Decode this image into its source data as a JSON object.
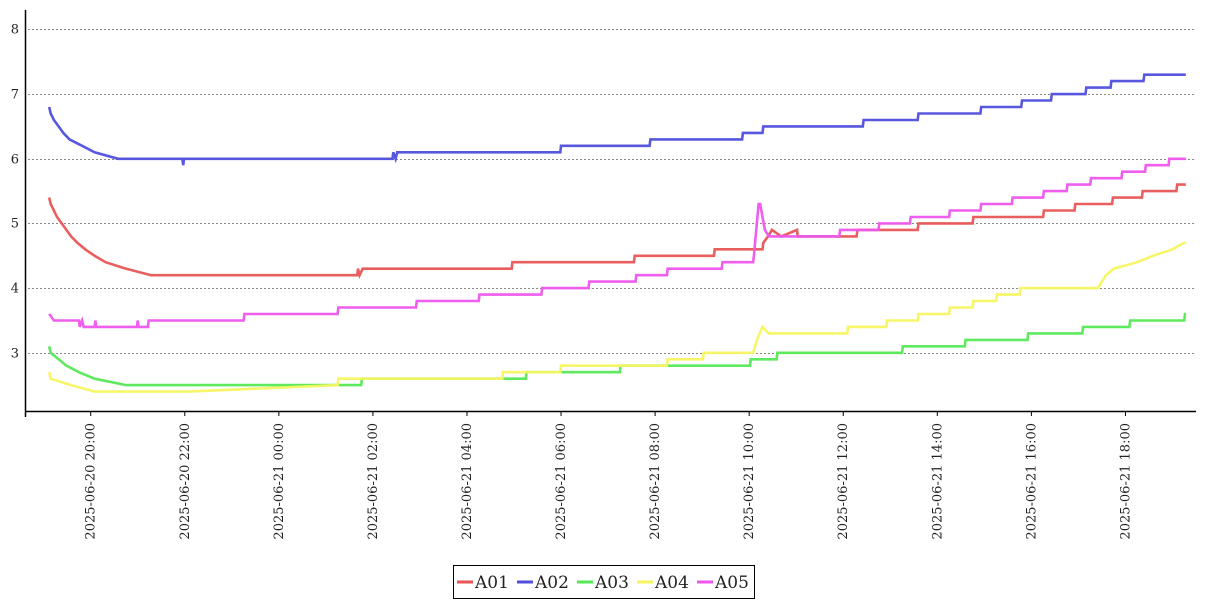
{
  "chart_data": {
    "type": "line",
    "title": "",
    "xlabel": "",
    "ylabel": "",
    "xlim": [
      "2025-06-20 18:40",
      "2025-06-21 19:30"
    ],
    "ylim": [
      2.1,
      8.3
    ],
    "yticks": [
      3,
      4,
      5,
      6,
      7,
      8
    ],
    "xticks": [
      "2025-06-20 20:00",
      "2025-06-20 22:00",
      "2025-06-21 00:00",
      "2025-06-21 02:00",
      "2025-06-21 04:00",
      "2025-06-21 06:00",
      "2025-06-21 08:00",
      "2025-06-21 10:00",
      "2025-06-21 12:00",
      "2025-06-21 14:00",
      "2025-06-21 16:00",
      "2025-06-21 18:00"
    ],
    "grid": "horizontal-dotted",
    "legend": "bottom-center",
    "series": [
      {
        "name": "A01",
        "color": "#e85555",
        "points": [
          [
            "2025-06-20 19:07",
            5.4
          ],
          [
            "2025-06-20 19:09",
            5.3
          ],
          [
            "2025-06-20 19:13",
            5.2
          ],
          [
            "2025-06-20 19:17",
            5.1
          ],
          [
            "2025-06-20 19:23",
            5.0
          ],
          [
            "2025-06-20 19:29",
            4.9
          ],
          [
            "2025-06-20 19:35",
            4.8
          ],
          [
            "2025-06-20 19:43",
            4.7
          ],
          [
            "2025-06-20 19:53",
            4.6
          ],
          [
            "2025-06-20 20:05",
            4.5
          ],
          [
            "2025-06-20 20:19",
            4.4
          ],
          [
            "2025-06-20 20:45",
            4.3
          ],
          [
            "2025-06-20 21:17",
            4.2
          ],
          [
            "2025-06-21 01:40",
            4.2
          ],
          [
            "2025-06-21 01:41",
            4.3
          ],
          [
            "2025-06-21 01:43",
            4.2
          ],
          [
            "2025-06-21 01:47",
            4.3
          ],
          [
            "2025-06-21 04:57",
            4.3
          ],
          [
            "2025-06-21 04:58",
            4.4
          ],
          [
            "2025-06-21 07:33",
            4.4
          ],
          [
            "2025-06-21 07:34",
            4.5
          ],
          [
            "2025-06-21 09:15",
            4.5
          ],
          [
            "2025-06-21 09:16",
            4.6
          ],
          [
            "2025-06-21 10:17",
            4.6
          ],
          [
            "2025-06-21 10:18",
            4.7
          ],
          [
            "2025-06-21 10:24",
            4.8
          ],
          [
            "2025-06-21 10:29",
            4.9
          ],
          [
            "2025-06-21 10:41",
            4.8
          ],
          [
            "2025-06-21 11:01",
            4.9
          ],
          [
            "2025-06-21 11:02",
            4.8
          ],
          [
            "2025-06-21 12:17",
            4.8
          ],
          [
            "2025-06-21 12:18",
            4.9
          ],
          [
            "2025-06-21 13:35",
            4.9
          ],
          [
            "2025-06-21 13:36",
            5.0
          ],
          [
            "2025-06-21 14:45",
            5.0
          ],
          [
            "2025-06-21 14:46",
            5.1
          ],
          [
            "2025-06-21 16:15",
            5.1
          ],
          [
            "2025-06-21 16:16",
            5.2
          ],
          [
            "2025-06-21 16:55",
            5.2
          ],
          [
            "2025-06-21 16:56",
            5.3
          ],
          [
            "2025-06-21 17:43",
            5.3
          ],
          [
            "2025-06-21 17:44",
            5.4
          ],
          [
            "2025-06-21 18:21",
            5.4
          ],
          [
            "2025-06-21 18:22",
            5.5
          ],
          [
            "2025-06-21 19:05",
            5.5
          ],
          [
            "2025-06-21 19:06",
            5.6
          ],
          [
            "2025-06-21 19:17",
            5.6
          ]
        ]
      },
      {
        "name": "A02",
        "color": "#4f4fdc",
        "points": [
          [
            "2025-06-20 19:07",
            6.8
          ],
          [
            "2025-06-20 19:09",
            6.7
          ],
          [
            "2025-06-20 19:13",
            6.6
          ],
          [
            "2025-06-20 19:19",
            6.5
          ],
          [
            "2025-06-20 19:25",
            6.4
          ],
          [
            "2025-06-20 19:33",
            6.3
          ],
          [
            "2025-06-20 19:49",
            6.2
          ],
          [
            "2025-06-20 20:05",
            6.1
          ],
          [
            "2025-06-20 20:35",
            6.0
          ],
          [
            "2025-06-20 21:57",
            6.0
          ],
          [
            "2025-06-20 21:58",
            5.9
          ],
          [
            "2025-06-20 21:59",
            6.0
          ],
          [
            "2025-06-21 02:25",
            6.0
          ],
          [
            "2025-06-21 02:26",
            6.1
          ],
          [
            "2025-06-21 02:29",
            6.0
          ],
          [
            "2025-06-21 02:31",
            6.1
          ],
          [
            "2025-06-21 05:59",
            6.1
          ],
          [
            "2025-06-21 06:00",
            6.2
          ],
          [
            "2025-06-21 07:53",
            6.2
          ],
          [
            "2025-06-21 07:54",
            6.3
          ],
          [
            "2025-06-21 09:51",
            6.3
          ],
          [
            "2025-06-21 09:52",
            6.4
          ],
          [
            "2025-06-21 10:17",
            6.4
          ],
          [
            "2025-06-21 10:18",
            6.5
          ],
          [
            "2025-06-21 12:25",
            6.5
          ],
          [
            "2025-06-21 12:26",
            6.6
          ],
          [
            "2025-06-21 13:35",
            6.6
          ],
          [
            "2025-06-21 13:36",
            6.7
          ],
          [
            "2025-06-21 14:55",
            6.7
          ],
          [
            "2025-06-21 14:56",
            6.8
          ],
          [
            "2025-06-21 15:47",
            6.8
          ],
          [
            "2025-06-21 15:48",
            6.9
          ],
          [
            "2025-06-21 16:25",
            6.9
          ],
          [
            "2025-06-21 16:26",
            7.0
          ],
          [
            "2025-06-21 17:09",
            7.0
          ],
          [
            "2025-06-21 17:10",
            7.1
          ],
          [
            "2025-06-21 17:41",
            7.1
          ],
          [
            "2025-06-21 17:42",
            7.2
          ],
          [
            "2025-06-21 18:23",
            7.2
          ],
          [
            "2025-06-21 18:24",
            7.3
          ],
          [
            "2025-06-21 19:17",
            7.3
          ]
        ]
      },
      {
        "name": "A03",
        "color": "#55e855",
        "points": [
          [
            "2025-06-20 19:07",
            3.1
          ],
          [
            "2025-06-20 19:09",
            3.0
          ],
          [
            "2025-06-20 19:19",
            2.9
          ],
          [
            "2025-06-20 19:29",
            2.8
          ],
          [
            "2025-06-20 19:45",
            2.7
          ],
          [
            "2025-06-20 20:05",
            2.6
          ],
          [
            "2025-06-20 20:45",
            2.5
          ],
          [
            "2025-06-21 01:45",
            2.5
          ],
          [
            "2025-06-21 01:46",
            2.6
          ],
          [
            "2025-06-21 05:15",
            2.6
          ],
          [
            "2025-06-21 05:16",
            2.7
          ],
          [
            "2025-06-21 07:15",
            2.7
          ],
          [
            "2025-06-21 07:16",
            2.8
          ],
          [
            "2025-06-21 10:01",
            2.8
          ],
          [
            "2025-06-21 10:02",
            2.9
          ],
          [
            "2025-06-21 10:35",
            2.9
          ],
          [
            "2025-06-21 10:36",
            3.0
          ],
          [
            "2025-06-21 13:15",
            3.0
          ],
          [
            "2025-06-21 13:16",
            3.1
          ],
          [
            "2025-06-21 14:35",
            3.1
          ],
          [
            "2025-06-21 14:36",
            3.2
          ],
          [
            "2025-06-21 15:55",
            3.2
          ],
          [
            "2025-06-21 15:56",
            3.3
          ],
          [
            "2025-06-21 17:05",
            3.3
          ],
          [
            "2025-06-21 17:06",
            3.4
          ],
          [
            "2025-06-21 18:05",
            3.4
          ],
          [
            "2025-06-21 18:06",
            3.5
          ],
          [
            "2025-06-21 19:15",
            3.5
          ],
          [
            "2025-06-21 19:16",
            3.6
          ],
          [
            "2025-06-21 19:17",
            3.6
          ]
        ]
      },
      {
        "name": "A04",
        "color": "#f5f560",
        "points": [
          [
            "2025-06-20 19:07",
            2.7
          ],
          [
            "2025-06-20 19:09",
            2.6
          ],
          [
            "2025-06-20 19:35",
            2.5
          ],
          [
            "2025-06-20 20:05",
            2.4
          ],
          [
            "2025-06-20 22:05",
            2.4
          ],
          [
            "2025-06-21 01:15",
            2.5
          ],
          [
            "2025-06-21 01:16",
            2.6
          ],
          [
            "2025-06-21 04:45",
            2.6
          ],
          [
            "2025-06-21 04:46",
            2.7
          ],
          [
            "2025-06-21 05:59",
            2.7
          ],
          [
            "2025-06-21 06:00",
            2.8
          ],
          [
            "2025-06-21 08:15",
            2.8
          ],
          [
            "2025-06-21 08:16",
            2.9
          ],
          [
            "2025-06-21 09:01",
            2.9
          ],
          [
            "2025-06-21 09:02",
            3.0
          ],
          [
            "2025-06-21 10:05",
            3.0
          ],
          [
            "2025-06-21 10:10",
            3.2
          ],
          [
            "2025-06-21 10:17",
            3.4
          ],
          [
            "2025-06-21 10:25",
            3.3
          ],
          [
            "2025-06-21 12:05",
            3.3
          ],
          [
            "2025-06-21 12:06",
            3.4
          ],
          [
            "2025-06-21 12:55",
            3.4
          ],
          [
            "2025-06-21 12:56",
            3.5
          ],
          [
            "2025-06-21 13:35",
            3.5
          ],
          [
            "2025-06-21 13:36",
            3.6
          ],
          [
            "2025-06-21 14:15",
            3.6
          ],
          [
            "2025-06-21 14:16",
            3.7
          ],
          [
            "2025-06-21 14:45",
            3.7
          ],
          [
            "2025-06-21 14:46",
            3.8
          ],
          [
            "2025-06-21 15:15",
            3.8
          ],
          [
            "2025-06-21 15:16",
            3.9
          ],
          [
            "2025-06-21 15:45",
            3.9
          ],
          [
            "2025-06-21 15:46",
            4.0
          ],
          [
            "2025-06-21 17:25",
            4.0
          ],
          [
            "2025-06-21 17:35",
            4.2
          ],
          [
            "2025-06-21 17:45",
            4.3
          ],
          [
            "2025-06-21 18:15",
            4.4
          ],
          [
            "2025-06-21 18:35",
            4.5
          ],
          [
            "2025-06-21 19:00",
            4.6
          ],
          [
            "2025-06-21 19:15",
            4.7
          ],
          [
            "2025-06-21 19:17",
            4.7
          ]
        ]
      },
      {
        "name": "A05",
        "color": "#ee55ee",
        "points": [
          [
            "2025-06-20 19:07",
            3.6
          ],
          [
            "2025-06-20 19:13",
            3.5
          ],
          [
            "2025-06-20 19:45",
            3.5
          ],
          [
            "2025-06-20 19:46",
            3.4
          ],
          [
            "2025-06-20 19:49",
            3.5
          ],
          [
            "2025-06-20 19:51",
            3.4
          ],
          [
            "2025-06-20 20:05",
            3.4
          ],
          [
            "2025-06-20 20:06",
            3.5
          ],
          [
            "2025-06-20 20:07",
            3.4
          ],
          [
            "2025-06-20 20:59",
            3.4
          ],
          [
            "2025-06-20 21:00",
            3.5
          ],
          [
            "2025-06-20 21:01",
            3.4
          ],
          [
            "2025-06-20 21:13",
            3.4
          ],
          [
            "2025-06-20 21:14",
            3.5
          ],
          [
            "2025-06-20 23:15",
            3.5
          ],
          [
            "2025-06-20 23:16",
            3.6
          ],
          [
            "2025-06-21 01:15",
            3.6
          ],
          [
            "2025-06-21 01:16",
            3.7
          ],
          [
            "2025-06-21 02:55",
            3.7
          ],
          [
            "2025-06-21 02:56",
            3.8
          ],
          [
            "2025-06-21 04:15",
            3.8
          ],
          [
            "2025-06-21 04:16",
            3.9
          ],
          [
            "2025-06-21 05:35",
            3.9
          ],
          [
            "2025-06-21 05:36",
            4.0
          ],
          [
            "2025-06-21 06:35",
            4.0
          ],
          [
            "2025-06-21 06:36",
            4.1
          ],
          [
            "2025-06-21 07:35",
            4.1
          ],
          [
            "2025-06-21 07:36",
            4.2
          ],
          [
            "2025-06-21 08:15",
            4.2
          ],
          [
            "2025-06-21 08:16",
            4.3
          ],
          [
            "2025-06-21 09:25",
            4.3
          ],
          [
            "2025-06-21 09:26",
            4.4
          ],
          [
            "2025-06-21 10:05",
            4.4
          ],
          [
            "2025-06-21 10:06",
            4.5
          ],
          [
            "2025-06-21 10:12",
            5.3
          ],
          [
            "2025-06-21 10:14",
            5.3
          ],
          [
            "2025-06-21 10:17",
            5.1
          ],
          [
            "2025-06-21 10:20",
            4.9
          ],
          [
            "2025-06-21 10:25",
            4.8
          ],
          [
            "2025-06-21 11:55",
            4.8
          ],
          [
            "2025-06-21 11:56",
            4.9
          ],
          [
            "2025-06-21 12:45",
            4.9
          ],
          [
            "2025-06-21 12:46",
            5.0
          ],
          [
            "2025-06-21 13:25",
            5.0
          ],
          [
            "2025-06-21 13:26",
            5.1
          ],
          [
            "2025-06-21 14:15",
            5.1
          ],
          [
            "2025-06-21 14:16",
            5.2
          ],
          [
            "2025-06-21 14:55",
            5.2
          ],
          [
            "2025-06-21 14:56",
            5.3
          ],
          [
            "2025-06-21 15:35",
            5.3
          ],
          [
            "2025-06-21 15:36",
            5.4
          ],
          [
            "2025-06-21 16:15",
            5.4
          ],
          [
            "2025-06-21 16:16",
            5.5
          ],
          [
            "2025-06-21 16:45",
            5.5
          ],
          [
            "2025-06-21 16:46",
            5.6
          ],
          [
            "2025-06-21 17:15",
            5.6
          ],
          [
            "2025-06-21 17:16",
            5.7
          ],
          [
            "2025-06-21 17:55",
            5.7
          ],
          [
            "2025-06-21 17:56",
            5.8
          ],
          [
            "2025-06-21 18:25",
            5.8
          ],
          [
            "2025-06-21 18:26",
            5.9
          ],
          [
            "2025-06-21 18:55",
            5.9
          ],
          [
            "2025-06-21 18:56",
            6.0
          ],
          [
            "2025-06-21 19:17",
            6.0
          ]
        ]
      }
    ]
  }
}
